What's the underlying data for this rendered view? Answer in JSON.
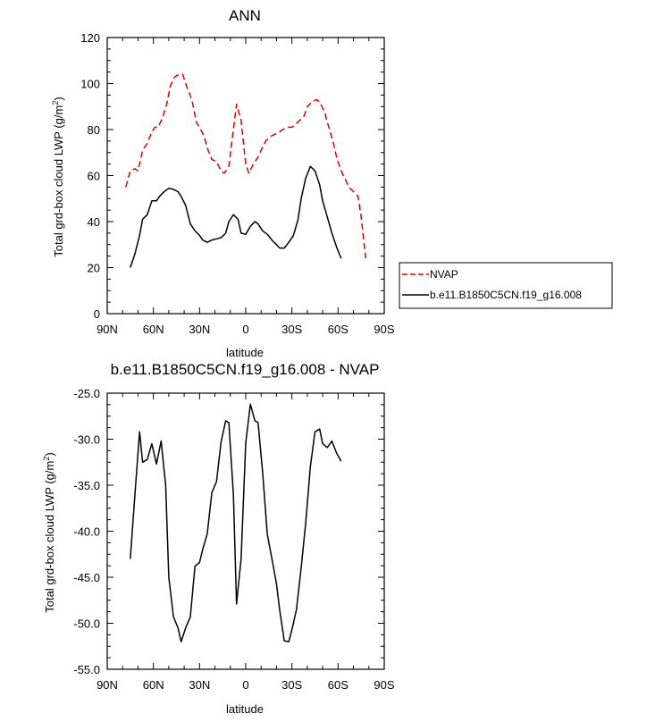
{
  "chart_data": [
    {
      "type": "line",
      "title": "ANN",
      "xlabel": "latitude",
      "ylabel": "Total grd-box cloud LWP (g/m",
      "ylabel_sup": "2",
      "ylabel_close": ")",
      "xlim": [
        90,
        -90
      ],
      "ylim": [
        0,
        120
      ],
      "x_ticks": [
        {
          "value": 90,
          "label": "90N"
        },
        {
          "value": 60,
          "label": "60N"
        },
        {
          "value": 30,
          "label": "30N"
        },
        {
          "value": 0,
          "label": "0"
        },
        {
          "value": -30,
          "label": "30S"
        },
        {
          "value": -60,
          "label": "60S"
        },
        {
          "value": -90,
          "label": "90S"
        }
      ],
      "y_ticks": [
        {
          "value": 0,
          "label": "0"
        },
        {
          "value": 20,
          "label": "20"
        },
        {
          "value": 40,
          "label": "40"
        },
        {
          "value": 60,
          "label": "60"
        },
        {
          "value": 80,
          "label": "80"
        },
        {
          "value": 100,
          "label": "100"
        },
        {
          "value": 120,
          "label": "120"
        }
      ],
      "legend_position": "right",
      "series": [
        {
          "name": "NVAP",
          "color": "#e00000",
          "dash": "dashed",
          "x": [
            78,
            75,
            72,
            70,
            67,
            64,
            61,
            59,
            57,
            54,
            51,
            49,
            46,
            43,
            41,
            38,
            35,
            32,
            30,
            27,
            25,
            22,
            19,
            16,
            14,
            11,
            8,
            6,
            3,
            0,
            -2,
            -5,
            -8,
            -10,
            -13,
            -16,
            -19,
            -22,
            -24,
            -27,
            -30,
            -32,
            -35,
            -38,
            -40,
            -43,
            -46,
            -48,
            -51,
            -54,
            -57,
            -59,
            -62,
            -65,
            -67,
            -70,
            -73,
            -75,
            -78
          ],
          "y": [
            55,
            62,
            63,
            62,
            71,
            74,
            79,
            81,
            81,
            85,
            92,
            99,
            103,
            104,
            104,
            98,
            93,
            83,
            81,
            77,
            72,
            67,
            66,
            62,
            61,
            64,
            80,
            91,
            84,
            65,
            61,
            65,
            68,
            71,
            75,
            77,
            78,
            79,
            80,
            81,
            81,
            82,
            84,
            86,
            90,
            92,
            93,
            92,
            88,
            81,
            74,
            68,
            62,
            58,
            55,
            53,
            51,
            42,
            24
          ]
        },
        {
          "name": "b.e11.B1850C5CN.f19_g16.008",
          "color": "#000000",
          "dash": "solid",
          "x": [
            75,
            72,
            69,
            67,
            64,
            61,
            58,
            56,
            53,
            50,
            47,
            44,
            42,
            39,
            36,
            33,
            30,
            28,
            25,
            22,
            19,
            16,
            13,
            11,
            8,
            5,
            3,
            0,
            -3,
            -6,
            -8,
            -11,
            -14,
            -17,
            -20,
            -22,
            -25,
            -28,
            -31,
            -34,
            -36,
            -39,
            -42,
            -45,
            -48,
            -50,
            -53,
            -56,
            -59,
            -62
          ],
          "y": [
            20,
            26,
            34,
            41,
            43,
            49,
            49,
            51,
            53,
            54.5,
            54,
            53,
            51,
            47,
            39,
            36,
            34,
            32,
            31,
            32,
            32.5,
            33,
            35,
            40,
            43,
            41,
            35,
            34.5,
            38,
            40,
            39,
            36,
            34.5,
            32,
            30,
            28.5,
            28.5,
            31,
            34,
            41,
            50,
            59,
            64,
            62,
            56,
            49,
            42,
            35,
            29,
            24
          ]
        }
      ]
    },
    {
      "type": "line",
      "title": "b.e11.B1850C5CN.f19_g16.008 - NVAP",
      "xlabel": "latitude",
      "ylabel": "Total grd-box cloud LWP (g/m",
      "ylabel_sup": "2",
      "ylabel_close": ")",
      "xlim": [
        90,
        -90
      ],
      "ylim": [
        -55,
        -25
      ],
      "x_ticks": [
        {
          "value": 90,
          "label": "90N"
        },
        {
          "value": 60,
          "label": "60N"
        },
        {
          "value": 30,
          "label": "30N"
        },
        {
          "value": 0,
          "label": "0"
        },
        {
          "value": -30,
          "label": "30S"
        },
        {
          "value": -60,
          "label": "60S"
        },
        {
          "value": -90,
          "label": "90S"
        }
      ],
      "y_ticks": [
        {
          "value": -55,
          "label": "-55.0"
        },
        {
          "value": -50,
          "label": "-50.0"
        },
        {
          "value": -45,
          "label": "-45.0"
        },
        {
          "value": -40,
          "label": "-40.0"
        },
        {
          "value": -35,
          "label": "-35.0"
        },
        {
          "value": -30,
          "label": "-30.0"
        },
        {
          "value": -25,
          "label": "-25.0"
        }
      ],
      "series": [
        {
          "color": "#000000",
          "dash": "solid",
          "x": [
            75,
            72,
            69,
            67,
            64,
            61,
            58,
            55,
            52,
            50,
            47,
            44,
            42,
            39,
            36,
            33,
            30,
            28,
            25,
            22,
            19,
            16,
            13,
            11,
            8,
            6,
            3,
            0,
            -3,
            -6,
            -8,
            -11,
            -14,
            -17,
            -20,
            -22,
            -25,
            -28,
            -30,
            -33,
            -36,
            -39,
            -42,
            -45,
            -48,
            -50,
            -53,
            -56,
            -59,
            -62
          ],
          "y": [
            -43,
            -36,
            -29.2,
            -32.5,
            -32.2,
            -30.5,
            -32.7,
            -30.2,
            -35,
            -45,
            -49.3,
            -50.5,
            -52,
            -50.5,
            -49.3,
            -43.8,
            -43.4,
            -42,
            -40.3,
            -35.8,
            -34.6,
            -30.3,
            -28,
            -28.2,
            -36,
            -47.9,
            -43,
            -30.4,
            -26.2,
            -28,
            -28.2,
            -33.6,
            -40.3,
            -43,
            -45.7,
            -48.5,
            -51.9,
            -52,
            -50.7,
            -48.5,
            -44,
            -39,
            -33,
            -29.2,
            -28.9,
            -30.5,
            -30.9,
            -30.2,
            -31.5,
            -32.4
          ]
        }
      ]
    }
  ]
}
